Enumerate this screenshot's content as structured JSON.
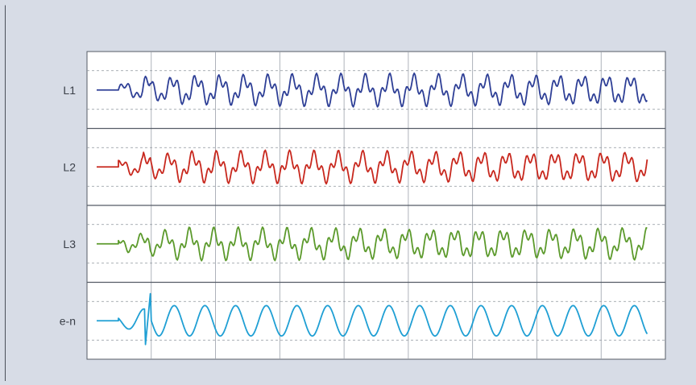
{
  "chart_data": {
    "type": "line",
    "title": "",
    "xlabel": "",
    "ylabel": "",
    "grid": true,
    "grid_columns": 9,
    "series": [
      {
        "name": "L1",
        "color": "#2e3f96"
      },
      {
        "name": "L2",
        "color": "#c8281e"
      },
      {
        "name": "L3",
        "color": "#5c9a2c"
      },
      {
        "name": "e-n",
        "color": "#1f9fd4"
      }
    ]
  }
}
